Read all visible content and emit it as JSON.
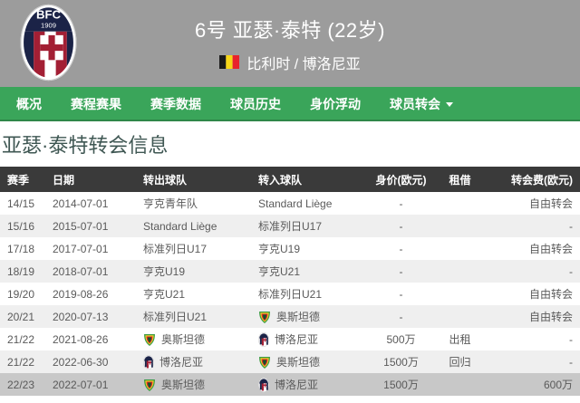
{
  "colors": {
    "header_bg": "#9c9c9c",
    "nav_bg": "#3aa55a",
    "table_header_bg": "#3a3a3a",
    "row_alt_bg": "#efefef",
    "row_highlight_bg": "#c8c8c8",
    "text_color": "#5a5a5a",
    "title_color": "#3f5753",
    "white": "#ffffff",
    "flag_colors": [
      "#1a1a1a",
      "#f7d618",
      "#e8232c"
    ],
    "crest_navy": "#1b2347",
    "crest_red": "#a31f34"
  },
  "header": {
    "title": "6号 亚瑟·泰特 (22岁)",
    "subtitle": "比利时 / 博洛尼亚",
    "crest_text": "BFC",
    "crest_year": "1909",
    "flag_icon": "belgium-flag",
    "crest_icon": "bologna-crest"
  },
  "nav": {
    "items": [
      {
        "label": "概况",
        "has_dropdown": false
      },
      {
        "label": "赛程赛果",
        "has_dropdown": false
      },
      {
        "label": "赛季数据",
        "has_dropdown": false
      },
      {
        "label": "球员历史",
        "has_dropdown": false
      },
      {
        "label": "身价浮动",
        "has_dropdown": false
      },
      {
        "label": "球员转会",
        "has_dropdown": true
      }
    ]
  },
  "section_title": "亚瑟·泰特转会信息",
  "table": {
    "columns": [
      {
        "key": "season",
        "label": "赛季",
        "align": "al",
        "cell_name": "season-cell"
      },
      {
        "key": "date",
        "label": "日期",
        "align": "al",
        "cell_name": "date-cell"
      },
      {
        "key": "from",
        "label": "转出球队",
        "align": "al",
        "cell_name": "from-team-cell"
      },
      {
        "key": "to",
        "label": "转入球队",
        "align": "al",
        "cell_name": "to-team-cell"
      },
      {
        "key": "value",
        "label": "身价(欧元)",
        "align": "ac",
        "cell_name": "market-value-cell"
      },
      {
        "key": "loan",
        "label": "租借",
        "align": "ac",
        "cell_name": "loan-cell"
      },
      {
        "key": "fee",
        "label": "转会费(欧元)",
        "align": "ar",
        "cell_name": "fee-cell"
      }
    ],
    "rows": [
      {
        "season": "14/15",
        "date": "2014-07-01",
        "from": "亨克青年队",
        "from_logo": null,
        "to": "Standard Liège",
        "to_logo": null,
        "value": "-",
        "loan": "",
        "fee": "自由转会",
        "highlight": false
      },
      {
        "season": "15/16",
        "date": "2015-07-01",
        "from": "Standard Liège",
        "from_logo": null,
        "to": "标准列日U17",
        "to_logo": null,
        "value": "-",
        "loan": "",
        "fee": "-",
        "highlight": false
      },
      {
        "season": "17/18",
        "date": "2017-07-01",
        "from": "标准列日U17",
        "from_logo": null,
        "to": "亨克U19",
        "to_logo": null,
        "value": "-",
        "loan": "",
        "fee": "自由转会",
        "highlight": false
      },
      {
        "season": "18/19",
        "date": "2018-07-01",
        "from": "亨克U19",
        "from_logo": null,
        "to": "亨克U21",
        "to_logo": null,
        "value": "-",
        "loan": "",
        "fee": "-",
        "highlight": false
      },
      {
        "season": "19/20",
        "date": "2019-08-26",
        "from": "亨克U21",
        "from_logo": null,
        "to": "标准列日U21",
        "to_logo": null,
        "value": "-",
        "loan": "",
        "fee": "自由转会",
        "highlight": false
      },
      {
        "season": "20/21",
        "date": "2020-07-13",
        "from": "标准列日U21",
        "from_logo": null,
        "to": "奥斯坦德",
        "to_logo": "oostende",
        "value": "-",
        "loan": "",
        "fee": "自由转会",
        "highlight": false
      },
      {
        "season": "21/22",
        "date": "2021-08-26",
        "from": "奥斯坦德",
        "from_logo": "oostende",
        "to": "博洛尼亚",
        "to_logo": "bologna",
        "value": "500万",
        "loan": "出租",
        "fee": "-",
        "highlight": false
      },
      {
        "season": "21/22",
        "date": "2022-06-30",
        "from": "博洛尼亚",
        "from_logo": "bologna",
        "to": "奥斯坦德",
        "to_logo": "oostende",
        "value": "1500万",
        "loan": "回归",
        "fee": "-",
        "highlight": false
      },
      {
        "season": "22/23",
        "date": "2022-07-01",
        "from": "奥斯坦德",
        "from_logo": "oostende",
        "to": "博洛尼亚",
        "to_logo": "bologna",
        "value": "1500万",
        "loan": "",
        "fee": "600万",
        "highlight": true
      }
    ]
  }
}
